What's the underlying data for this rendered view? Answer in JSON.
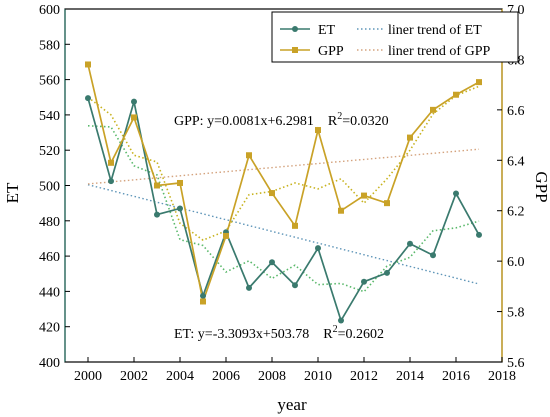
{
  "chart_data": {
    "type": "line",
    "xlabel": "year",
    "ylabel_left": "ET",
    "ylabel_right": "GPP",
    "xlim": [
      1999,
      2018
    ],
    "ylim_left": [
      400,
      600
    ],
    "ylim_right": [
      5.6,
      7.0
    ],
    "xticks": [
      2000,
      2002,
      2004,
      2006,
      2008,
      2010,
      2012,
      2014,
      2016,
      2018
    ],
    "yticks_left": [
      400,
      420,
      440,
      460,
      480,
      500,
      520,
      540,
      560,
      580,
      600
    ],
    "yticks_right": [
      "5.6",
      "5.8",
      "6.0",
      "6.2",
      "6.4",
      "6.6",
      "6.8",
      "7.0"
    ],
    "x": [
      2000,
      2001,
      2002,
      2003,
      2004,
      2005,
      2006,
      2007,
      2008,
      2009,
      2010,
      2011,
      2012,
      2013,
      2014,
      2015,
      2016,
      2017
    ],
    "series": [
      {
        "name": "ET",
        "axis": "left",
        "color": "#3a7a6e",
        "marker": "circle",
        "values": [
          549.5,
          502.5,
          547.5,
          483.5,
          487,
          437.5,
          473.5,
          442,
          456.5,
          443.5,
          464.5,
          423.5,
          445.5,
          450.5,
          467,
          460.5,
          495.5,
          472
        ]
      },
      {
        "name": "GPP",
        "axis": "right",
        "color": "#c9a227",
        "marker": "square",
        "values": [
          6.78,
          6.39,
          6.57,
          6.3,
          6.31,
          5.84,
          6.1,
          6.42,
          6.27,
          6.14,
          6.52,
          6.2,
          6.26,
          6.23,
          6.49,
          6.6,
          6.66,
          6.71
        ]
      }
    ],
    "trends": [
      {
        "name": "liner trend of ET",
        "axis": "left",
        "color": "#5e95b8",
        "slope": -3.3093,
        "intercept": 503.78
      },
      {
        "name": "liner trend of GPP",
        "axis": "right",
        "color": "#d4a37e",
        "slope": 0.0081,
        "intercept": 6.2981
      }
    ],
    "annotations": {
      "gpp_eq": "GPP: y=0.0081x+6.2981",
      "gpp_r2_label": "R",
      "gpp_r2_sup": "2",
      "gpp_r2_value": "=0.0320",
      "et_eq": "ET: y=-3.3093x+503.78",
      "et_r2_label": "R",
      "et_r2_sup": "2",
      "et_r2_value": "=0.2602"
    },
    "legend": {
      "placement": "top-right"
    },
    "grid": false
  }
}
